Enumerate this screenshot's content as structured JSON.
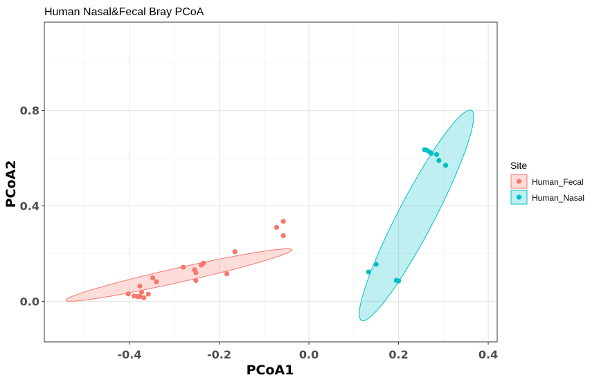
{
  "chart_data": {
    "type": "scatter",
    "title": "Human Nasal&Fecal Bray PCoA",
    "xlabel": "PCoA1",
    "ylabel": "PCoA2",
    "xlim": [
      -0.59,
      0.42
    ],
    "ylim": [
      -0.17,
      1.17
    ],
    "x_ticks": [
      -0.4,
      -0.2,
      0.0,
      0.2,
      0.4
    ],
    "x_tick_labels": [
      "-0.4",
      "-0.2",
      "0.0",
      "0.2",
      "0.4"
    ],
    "y_ticks": [
      0.0,
      0.4,
      0.8
    ],
    "y_tick_labels": [
      "0.0",
      "0.4",
      "0.8"
    ],
    "grid": true,
    "legend": {
      "title": "Site",
      "position": "right"
    },
    "series": [
      {
        "name": "Human_Fecal",
        "color": "#F8766D",
        "fill": "#F8766D",
        "points": [
          [
            -0.403,
            0.031
          ],
          [
            -0.39,
            0.022
          ],
          [
            -0.382,
            0.02
          ],
          [
            -0.377,
            0.02
          ],
          [
            -0.373,
            0.038
          ],
          [
            -0.377,
            0.064
          ],
          [
            -0.368,
            0.015
          ],
          [
            -0.358,
            0.03
          ],
          [
            -0.348,
            0.098
          ],
          [
            -0.34,
            0.082
          ],
          [
            -0.28,
            0.143
          ],
          [
            -0.255,
            0.132
          ],
          [
            -0.252,
            0.12
          ],
          [
            -0.252,
            0.087
          ],
          [
            -0.24,
            0.152
          ],
          [
            -0.235,
            0.16
          ],
          [
            -0.183,
            0.115
          ],
          [
            -0.165,
            0.208
          ],
          [
            -0.072,
            0.31
          ],
          [
            -0.057,
            0.335
          ],
          [
            -0.057,
            0.275
          ]
        ],
        "ellipse": {
          "center": [
            -0.29,
            0.11
          ],
          "a": 0.2734,
          "b": 0.0286,
          "angle_deg": 23.0
        }
      },
      {
        "name": "Human_Nasal",
        "color": "#00BFC4",
        "fill": "#00BFC4",
        "points": [
          [
            0.133,
            0.123
          ],
          [
            0.15,
            0.155
          ],
          [
            0.195,
            0.088
          ],
          [
            0.2,
            0.085
          ],
          [
            0.258,
            0.635
          ],
          [
            0.263,
            0.633
          ],
          [
            0.27,
            0.625
          ],
          [
            0.273,
            0.62
          ],
          [
            0.285,
            0.615
          ],
          [
            0.29,
            0.59
          ],
          [
            0.305,
            0.57
          ]
        ],
        "ellipse": {
          "center": [
            0.24,
            0.36
          ],
          "a": 0.4577,
          "b": 0.0436,
          "angle_deg": 74.75
        }
      }
    ]
  }
}
